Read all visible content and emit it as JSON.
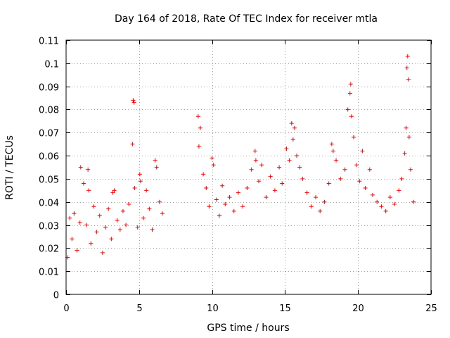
{
  "chart_data": {
    "type": "scatter",
    "title": "Day 164 of 2018, Rate Of TEC Index for receiver mtla",
    "xlabel": "GPS time / hours",
    "ylabel": "ROTI / TECUs",
    "xlim": [
      0,
      25
    ],
    "ylim": [
      0,
      0.11
    ],
    "xticks": [
      0,
      5,
      10,
      15,
      20,
      25
    ],
    "xtick_labels": [
      "0",
      "5",
      "10",
      "15",
      "20",
      "25"
    ],
    "yticks": [
      0,
      0.01,
      0.02,
      0.03,
      0.04,
      0.05,
      0.06,
      0.07,
      0.08,
      0.09,
      0.1,
      0.11
    ],
    "ytick_labels": [
      "0",
      "0.01",
      "0.02",
      "0.03",
      "0.04",
      "0.05",
      "0.06",
      "0.07",
      "0.08",
      "0.09",
      "0.1",
      "0.11"
    ],
    "grid": true,
    "marker": "+",
    "color": "#ff0000",
    "data_gap_hours": [
      6.8,
      9.0
    ],
    "series": [
      {
        "name": "mtla",
        "points": [
          [
            0.1,
            0.016
          ],
          [
            0.25,
            0.033
          ],
          [
            0.4,
            0.024
          ],
          [
            0.55,
            0.035
          ],
          [
            0.75,
            0.019
          ],
          [
            0.95,
            0.031
          ],
          [
            1.0,
            0.055
          ],
          [
            1.2,
            0.048
          ],
          [
            1.4,
            0.03
          ],
          [
            1.5,
            0.054
          ],
          [
            1.55,
            0.045
          ],
          [
            1.7,
            0.022
          ],
          [
            1.9,
            0.038
          ],
          [
            2.1,
            0.027
          ],
          [
            2.3,
            0.034
          ],
          [
            2.5,
            0.018
          ],
          [
            2.7,
            0.029
          ],
          [
            2.9,
            0.037
          ],
          [
            3.1,
            0.024
          ],
          [
            3.2,
            0.044
          ],
          [
            3.3,
            0.045
          ],
          [
            3.5,
            0.032
          ],
          [
            3.7,
            0.028
          ],
          [
            3.9,
            0.036
          ],
          [
            4.1,
            0.03
          ],
          [
            4.3,
            0.039
          ],
          [
            4.55,
            0.065
          ],
          [
            4.6,
            0.084
          ],
          [
            4.65,
            0.083
          ],
          [
            4.7,
            0.046
          ],
          [
            4.9,
            0.029
          ],
          [
            5.05,
            0.052
          ],
          [
            5.1,
            0.049
          ],
          [
            5.3,
            0.033
          ],
          [
            5.5,
            0.045
          ],
          [
            5.7,
            0.037
          ],
          [
            5.9,
            0.028
          ],
          [
            6.1,
            0.058
          ],
          [
            6.2,
            0.055
          ],
          [
            6.4,
            0.04
          ],
          [
            6.6,
            0.035
          ],
          [
            9.05,
            0.077
          ],
          [
            9.1,
            0.064
          ],
          [
            9.2,
            0.072
          ],
          [
            9.4,
            0.052
          ],
          [
            9.6,
            0.046
          ],
          [
            9.8,
            0.038
          ],
          [
            10.0,
            0.059
          ],
          [
            10.1,
            0.056
          ],
          [
            10.3,
            0.041
          ],
          [
            10.5,
            0.034
          ],
          [
            10.7,
            0.047
          ],
          [
            10.9,
            0.039
          ],
          [
            11.2,
            0.042
          ],
          [
            11.5,
            0.036
          ],
          [
            11.8,
            0.044
          ],
          [
            12.1,
            0.038
          ],
          [
            12.4,
            0.046
          ],
          [
            12.7,
            0.054
          ],
          [
            12.95,
            0.062
          ],
          [
            13.0,
            0.058
          ],
          [
            13.2,
            0.049
          ],
          [
            13.4,
            0.056
          ],
          [
            13.7,
            0.042
          ],
          [
            14.0,
            0.051
          ],
          [
            14.3,
            0.045
          ],
          [
            14.6,
            0.055
          ],
          [
            14.8,
            0.048
          ],
          [
            15.1,
            0.063
          ],
          [
            15.3,
            0.058
          ],
          [
            15.45,
            0.074
          ],
          [
            15.55,
            0.067
          ],
          [
            15.65,
            0.072
          ],
          [
            15.8,
            0.06
          ],
          [
            16.0,
            0.055
          ],
          [
            16.2,
            0.05
          ],
          [
            16.5,
            0.044
          ],
          [
            16.8,
            0.038
          ],
          [
            17.1,
            0.042
          ],
          [
            17.4,
            0.036
          ],
          [
            17.7,
            0.04
          ],
          [
            18.0,
            0.048
          ],
          [
            18.2,
            0.065
          ],
          [
            18.3,
            0.062
          ],
          [
            18.5,
            0.058
          ],
          [
            18.8,
            0.05
          ],
          [
            19.1,
            0.054
          ],
          [
            19.3,
            0.08
          ],
          [
            19.45,
            0.087
          ],
          [
            19.5,
            0.091
          ],
          [
            19.55,
            0.077
          ],
          [
            19.7,
            0.068
          ],
          [
            19.9,
            0.056
          ],
          [
            20.1,
            0.049
          ],
          [
            20.3,
            0.062
          ],
          [
            20.5,
            0.046
          ],
          [
            20.8,
            0.054
          ],
          [
            21.0,
            0.043
          ],
          [
            21.3,
            0.04
          ],
          [
            21.6,
            0.038
          ],
          [
            21.9,
            0.036
          ],
          [
            22.2,
            0.042
          ],
          [
            22.5,
            0.039
          ],
          [
            22.8,
            0.045
          ],
          [
            23.0,
            0.05
          ],
          [
            23.2,
            0.061
          ],
          [
            23.3,
            0.072
          ],
          [
            23.35,
            0.098
          ],
          [
            23.4,
            0.103
          ],
          [
            23.45,
            0.093
          ],
          [
            23.5,
            0.068
          ],
          [
            23.6,
            0.054
          ],
          [
            23.8,
            0.04
          ]
        ]
      }
    ]
  }
}
